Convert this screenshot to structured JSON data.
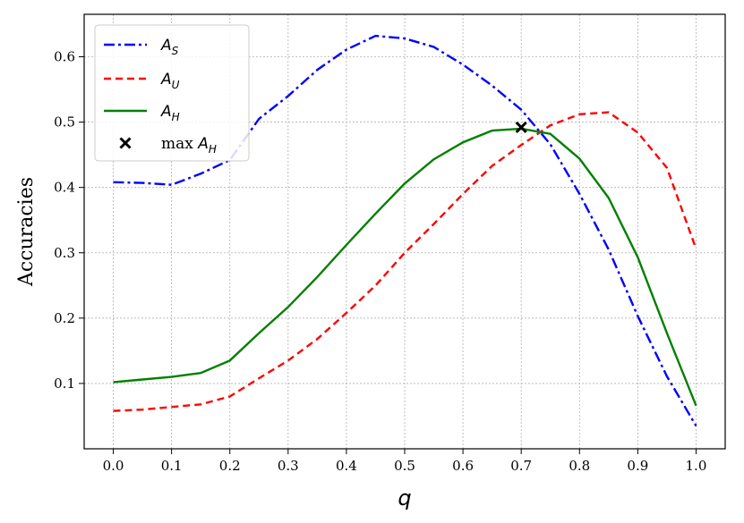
{
  "chart_data": {
    "type": "line",
    "xlabel": "q",
    "ylabel": "Accuracies",
    "xlim": [
      -0.05,
      1.05
    ],
    "ylim": [
      0.0,
      0.665
    ],
    "xticks": [
      "0.0",
      "0.1",
      "0.2",
      "0.3",
      "0.4",
      "0.5",
      "0.6",
      "0.7",
      "0.8",
      "0.9",
      "1.0"
    ],
    "yticks": [
      "0.1",
      "0.2",
      "0.3",
      "0.4",
      "0.5",
      "0.6"
    ],
    "grid": true,
    "legend_position": "top-left",
    "x": [
      0.0,
      0.05,
      0.1,
      0.15,
      0.2,
      0.25,
      0.3,
      0.35,
      0.4,
      0.45,
      0.5,
      0.55,
      0.6,
      0.65,
      0.7,
      0.75,
      0.8,
      0.85,
      0.9,
      0.95,
      1.0
    ],
    "series": [
      {
        "name": "A_S",
        "label_main": "A",
        "label_sub": "S",
        "color": "#0000ff",
        "style": "dashdot",
        "values": [
          0.408,
          0.407,
          0.404,
          0.421,
          0.442,
          0.505,
          0.54,
          0.58,
          0.611,
          0.632,
          0.628,
          0.615,
          0.588,
          0.556,
          0.519,
          0.466,
          0.39,
          0.305,
          0.203,
          0.111,
          0.035
        ]
      },
      {
        "name": "A_U",
        "label_main": "A",
        "label_sub": "U",
        "color": "#ff0000",
        "style": "dashed",
        "values": [
          0.058,
          0.06,
          0.064,
          0.068,
          0.08,
          0.108,
          0.135,
          0.168,
          0.208,
          0.25,
          0.3,
          0.344,
          0.39,
          0.433,
          0.465,
          0.495,
          0.512,
          0.515,
          0.484,
          0.43,
          0.306
        ]
      },
      {
        "name": "A_H",
        "label_main": "A",
        "label_sub": "H",
        "color": "#008000",
        "style": "solid",
        "values": [
          0.102,
          0.106,
          0.11,
          0.116,
          0.135,
          0.177,
          0.217,
          0.263,
          0.312,
          0.36,
          0.406,
          0.443,
          0.469,
          0.487,
          0.49,
          0.482,
          0.444,
          0.384,
          0.293,
          0.177,
          0.066
        ]
      }
    ],
    "marker": {
      "name": "max A_H",
      "label_prefix": "max ",
      "label_main": "A",
      "label_sub": "H",
      "x": 0.7,
      "y": 0.492,
      "color": "#000000",
      "symbol": "x"
    }
  }
}
